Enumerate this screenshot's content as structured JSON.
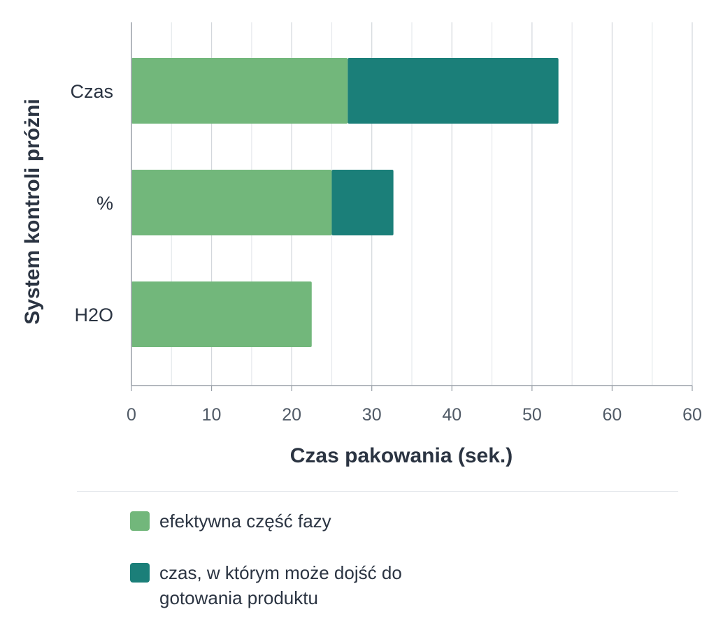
{
  "chart_data": {
    "type": "bar",
    "orientation": "horizontal",
    "stacked": true,
    "categories": [
      "Czas",
      "%",
      "H2O"
    ],
    "series": [
      {
        "name": "efektywna część fazy",
        "values": [
          27,
          25,
          22.5
        ],
        "color": "#72b77b"
      },
      {
        "name": "czas, w którym może dojść do gotowania produktu",
        "values": [
          26.3,
          7.7,
          0
        ],
        "color": "#1b7f79"
      }
    ],
    "xlabel": "Czas pakowania (sek.)",
    "ylabel": "System kontroli próżni",
    "x_ticks": [
      "0",
      "10",
      "20",
      "30",
      "40",
      "50",
      "60",
      "60"
    ],
    "xlim": [
      0,
      70
    ],
    "grid": true,
    "legend_position": "bottom-left"
  }
}
